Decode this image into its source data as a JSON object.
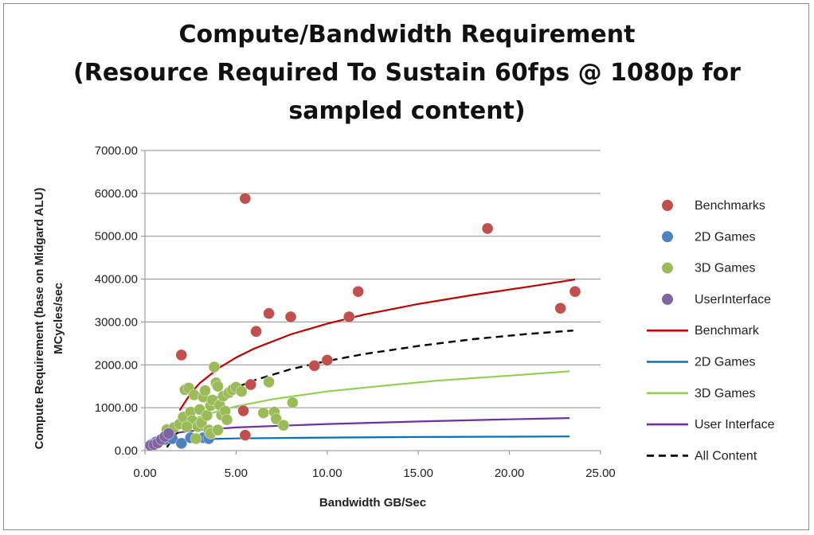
{
  "chart_data": {
    "type": "scatter",
    "title_lines": [
      "Compute/Bandwidth Requirement",
      "(Resource Required To Sustain 60fps @ 1080p for",
      "sampled content)"
    ],
    "xlabel": "Bandwidth GB/Sec",
    "ylabel_lines": [
      "Compute Requirement (base on Midgard ALU)",
      "MCycles/sec"
    ],
    "xlim": [
      0,
      25
    ],
    "ylim": [
      0,
      7000
    ],
    "x_ticks": [
      0,
      5,
      10,
      15,
      20,
      25
    ],
    "x_tick_labels": [
      "0.00",
      "5.00",
      "10.00",
      "15.00",
      "20.00",
      "25.00"
    ],
    "y_ticks": [
      0,
      1000,
      2000,
      3000,
      4000,
      5000,
      6000,
      7000
    ],
    "y_tick_labels": [
      "0.00",
      "1000.00",
      "2000.00",
      "3000.00",
      "4000.00",
      "5000.00",
      "6000.00",
      "7000.00"
    ],
    "grid": "horizontal",
    "legend_position": "right",
    "scatter_series": [
      {
        "name": "Benchmarks",
        "color": "#c0504d",
        "points": [
          [
            2.0,
            2230
          ],
          [
            5.5,
            5880
          ],
          [
            6.1,
            2780
          ],
          [
            6.8,
            3200
          ],
          [
            8.0,
            3120
          ],
          [
            5.8,
            1540
          ],
          [
            5.4,
            930
          ],
          [
            5.5,
            360
          ],
          [
            9.3,
            1980
          ],
          [
            10.0,
            2110
          ],
          [
            11.2,
            3120
          ],
          [
            11.7,
            3710
          ],
          [
            18.8,
            5180
          ],
          [
            22.8,
            3320
          ],
          [
            23.6,
            3710
          ]
        ]
      },
      {
        "name": "2D Games",
        "color": "#4f81bd",
        "points": [
          [
            0.4,
            150
          ],
          [
            0.6,
            200
          ],
          [
            0.9,
            240
          ],
          [
            1.1,
            260
          ],
          [
            1.5,
            280
          ],
          [
            2.0,
            170
          ],
          [
            2.5,
            300
          ],
          [
            3.2,
            300
          ],
          [
            3.5,
            280
          ]
        ]
      },
      {
        "name": "3D Games",
        "color": "#9bbb59",
        "points": [
          [
            1.2,
            490
          ],
          [
            1.6,
            540
          ],
          [
            1.9,
            620
          ],
          [
            2.1,
            780
          ],
          [
            2.2,
            1420
          ],
          [
            2.4,
            1460
          ],
          [
            2.5,
            900
          ],
          [
            2.6,
            700
          ],
          [
            2.7,
            1300
          ],
          [
            2.8,
            280
          ],
          [
            2.9,
            560
          ],
          [
            3.0,
            960
          ],
          [
            3.1,
            650
          ],
          [
            3.2,
            1250
          ],
          [
            3.3,
            1400
          ],
          [
            3.4,
            820
          ],
          [
            3.5,
            480
          ],
          [
            3.6,
            1050
          ],
          [
            3.7,
            1180
          ],
          [
            3.8,
            1950
          ],
          [
            3.9,
            1580
          ],
          [
            4.0,
            1500
          ],
          [
            4.1,
            1060
          ],
          [
            4.2,
            830
          ],
          [
            4.3,
            1270
          ],
          [
            4.4,
            920
          ],
          [
            4.5,
            720
          ],
          [
            4.6,
            1350
          ],
          [
            4.8,
            1420
          ],
          [
            5.0,
            1480
          ],
          [
            5.3,
            1380
          ],
          [
            6.5,
            880
          ],
          [
            6.8,
            1600
          ],
          [
            7.1,
            900
          ],
          [
            7.2,
            740
          ],
          [
            7.6,
            590
          ],
          [
            8.1,
            1120
          ],
          [
            3.6,
            400
          ],
          [
            4.0,
            480
          ],
          [
            2.3,
            560
          ]
        ]
      },
      {
        "name": "UserInterface",
        "color": "#8064a2",
        "points": [
          [
            0.3,
            120
          ],
          [
            0.5,
            140
          ],
          [
            0.7,
            180
          ],
          [
            0.9,
            260
          ],
          [
            1.1,
            330
          ],
          [
            1.3,
            400
          ]
        ]
      }
    ],
    "trend_series": [
      {
        "name": "Benchmark",
        "color": "#c00000",
        "dash": "",
        "width": 2.2,
        "points": [
          [
            1.9,
            940
          ],
          [
            2.5,
            1330
          ],
          [
            3.0,
            1570
          ],
          [
            4.0,
            1910
          ],
          [
            5.0,
            2170
          ],
          [
            6.0,
            2380
          ],
          [
            8.0,
            2710
          ],
          [
            10.0,
            2960
          ],
          [
            12.0,
            3170
          ],
          [
            15.0,
            3420
          ],
          [
            18.0,
            3630
          ],
          [
            21.0,
            3820
          ],
          [
            23.6,
            3990
          ]
        ]
      },
      {
        "name": "2D Games",
        "color": "#0070c0",
        "dash": "",
        "width": 2.2,
        "points": [
          [
            0.5,
            180
          ],
          [
            1.0,
            215
          ],
          [
            2.0,
            250
          ],
          [
            3.0,
            265
          ],
          [
            5.0,
            285
          ],
          [
            10.0,
            305
          ],
          [
            15.0,
            318
          ],
          [
            20.0,
            325
          ],
          [
            23.3,
            330
          ]
        ]
      },
      {
        "name": "3D Games",
        "color": "#92d050",
        "dash": "",
        "width": 2.2,
        "points": [
          [
            1.0,
            330
          ],
          [
            1.5,
            470
          ],
          [
            2.0,
            600
          ],
          [
            3.0,
            790
          ],
          [
            4.0,
            920
          ],
          [
            5.0,
            1030
          ],
          [
            7.0,
            1200
          ],
          [
            10.0,
            1380
          ],
          [
            13.0,
            1510
          ],
          [
            16.0,
            1630
          ],
          [
            20.0,
            1750
          ],
          [
            23.3,
            1850
          ]
        ]
      },
      {
        "name": "User Interface",
        "color": "#7030a0",
        "dash": "",
        "width": 2.2,
        "points": [
          [
            0.3,
            120
          ],
          [
            0.6,
            220
          ],
          [
            1.0,
            310
          ],
          [
            1.5,
            390
          ],
          [
            2.0,
            430
          ],
          [
            3.0,
            480
          ],
          [
            5.0,
            540
          ],
          [
            10.0,
            620
          ],
          [
            15.0,
            680
          ],
          [
            20.0,
            730
          ],
          [
            23.3,
            760
          ]
        ]
      },
      {
        "name": "All Content",
        "color": "#000000",
        "dash": "9,6",
        "width": 2.4,
        "points": [
          [
            1.2,
            80
          ],
          [
            1.6,
            320
          ],
          [
            2.0,
            550
          ],
          [
            2.5,
            780
          ],
          [
            3.0,
            970
          ],
          [
            4.0,
            1250
          ],
          [
            5.0,
            1470
          ],
          [
            6.0,
            1640
          ],
          [
            8.0,
            1900
          ],
          [
            10.0,
            2090
          ],
          [
            12.0,
            2250
          ],
          [
            15.0,
            2440
          ],
          [
            18.0,
            2600
          ],
          [
            21.0,
            2720
          ],
          [
            23.5,
            2800
          ]
        ]
      }
    ]
  }
}
